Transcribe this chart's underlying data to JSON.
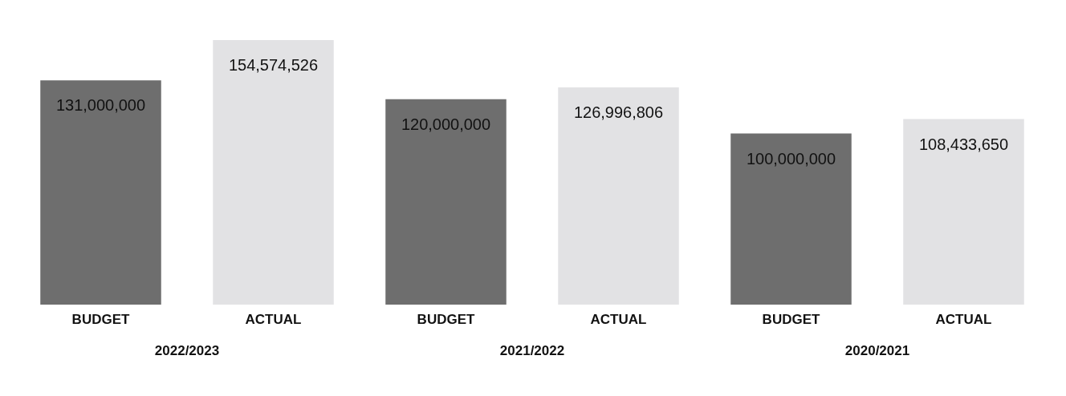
{
  "chart_data": {
    "type": "bar",
    "categories": [
      "BUDGET",
      "ACTUAL",
      "BUDGET",
      "ACTUAL",
      "BUDGET",
      "ACTUAL"
    ],
    "values": [
      131000000,
      154574526,
      120000000,
      126996806,
      100000000,
      108433650
    ],
    "value_labels": [
      "131,000,000",
      "154,574,526",
      "120,000,000",
      "126,996,806",
      "100,000,000",
      "108,433,650"
    ],
    "colors": [
      "#6e6e6e",
      "#e2e2e4",
      "#6e6e6e",
      "#e2e2e4",
      "#6e6e6e",
      "#e2e2e4"
    ],
    "annotations": [
      "2022/2023",
      "2021/2022",
      "2020/2021"
    ]
  }
}
